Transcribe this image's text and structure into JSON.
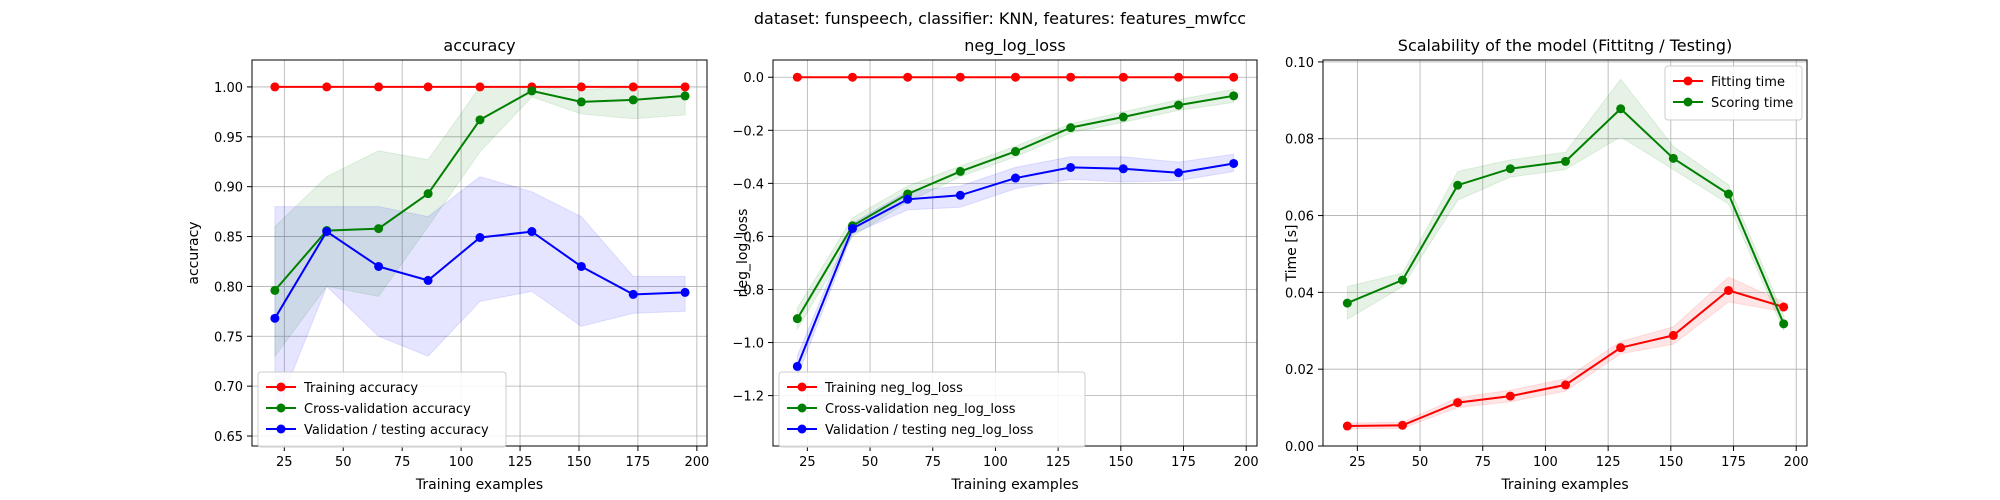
{
  "suptitle": "dataset: funspeech, classifier: KNN, features: features_mwfcc",
  "colors": {
    "training": "#ff0000",
    "cross_validation": "#008000",
    "validation": "#0000ff"
  },
  "chart_data": [
    {
      "type": "line",
      "title": "accuracy",
      "xlabel": "Training examples",
      "ylabel": "accuracy",
      "xlim": [
        11.3,
        204.3
      ],
      "ylim": [
        0.64,
        1.027
      ],
      "xticks": [
        25,
        50,
        75,
        100,
        125,
        150,
        175,
        200
      ],
      "yticks": [
        0.65,
        0.7,
        0.75,
        0.8,
        0.85,
        0.9,
        0.95,
        1.0
      ],
      "ytick_labels": [
        "0.65",
        "0.70",
        "0.75",
        "0.80",
        "0.85",
        "0.90",
        "0.95",
        "1.00"
      ],
      "grid": true,
      "legend_position": "lower-left",
      "x": [
        21,
        43,
        65,
        86,
        108,
        130,
        151,
        173,
        195
      ],
      "series": [
        {
          "name": "Training accuracy",
          "color": "#ff0000",
          "values": [
            1.0,
            1.0,
            1.0,
            1.0,
            1.0,
            1.0,
            1.0,
            1.0,
            1.0
          ],
          "lower": [
            1.0,
            1.0,
            1.0,
            1.0,
            1.0,
            1.0,
            1.0,
            1.0,
            1.0
          ],
          "upper": [
            1.0,
            1.0,
            1.0,
            1.0,
            1.0,
            1.0,
            1.0,
            1.0,
            1.0
          ]
        },
        {
          "name": "Cross-validation accuracy",
          "color": "#008000",
          "values": [
            0.796,
            0.856,
            0.858,
            0.893,
            0.967,
            0.996,
            0.985,
            0.987,
            0.991
          ],
          "lower": [
            0.73,
            0.8,
            0.79,
            0.86,
            0.935,
            0.99,
            0.973,
            0.968,
            0.972
          ],
          "upper": [
            0.86,
            0.91,
            0.936,
            0.927,
            1.0,
            1.0,
            0.997,
            1.0,
            1.0
          ]
        },
        {
          "name": "Validation / testing accuracy",
          "color": "#0000ff",
          "values": [
            0.768,
            0.855,
            0.82,
            0.806,
            0.849,
            0.855,
            0.82,
            0.792,
            0.794
          ],
          "lower": [
            0.67,
            0.8,
            0.75,
            0.73,
            0.785,
            0.795,
            0.76,
            0.773,
            0.775
          ],
          "upper": [
            0.88,
            0.88,
            0.88,
            0.87,
            0.91,
            0.895,
            0.87,
            0.81,
            0.81
          ]
        }
      ]
    },
    {
      "type": "line",
      "title": "neg_log_loss",
      "xlabel": "Training examples",
      "ylabel": "neg_log_loss",
      "xlim": [
        11.3,
        204.3
      ],
      "ylim": [
        -1.39,
        0.065
      ],
      "xticks": [
        25,
        50,
        75,
        100,
        125,
        150,
        175,
        200
      ],
      "yticks": [
        -1.2,
        -1.0,
        -0.8,
        -0.6,
        -0.4,
        -0.2,
        0.0
      ],
      "ytick_labels": [
        "−1.2",
        "−1.0",
        "−0.8",
        "−0.6",
        "−0.4",
        "−0.2",
        "0.0"
      ],
      "grid": true,
      "legend_position": "lower-left",
      "x": [
        21,
        43,
        65,
        86,
        108,
        130,
        151,
        173,
        195
      ],
      "series": [
        {
          "name": "Training neg_log_loss",
          "color": "#ff0000",
          "values": [
            0,
            0,
            0,
            0,
            0,
            0,
            0,
            0,
            0
          ],
          "lower": [
            0,
            0,
            0,
            0,
            0,
            0,
            0,
            0,
            0
          ],
          "upper": [
            0,
            0,
            0,
            0,
            0,
            0,
            0,
            0,
            0
          ]
        },
        {
          "name": "Cross-validation neg_log_loss",
          "color": "#008000",
          "values": [
            -0.91,
            -0.56,
            -0.44,
            -0.355,
            -0.28,
            -0.19,
            -0.15,
            -0.105,
            -0.07
          ],
          "lower": [
            -0.95,
            -0.6,
            -0.47,
            -0.375,
            -0.3,
            -0.21,
            -0.17,
            -0.125,
            -0.095
          ],
          "upper": [
            -0.87,
            -0.53,
            -0.41,
            -0.335,
            -0.26,
            -0.175,
            -0.13,
            -0.085,
            -0.045
          ]
        },
        {
          "name": "Validation / testing neg_log_loss",
          "color": "#0000ff",
          "values": [
            -1.09,
            -0.57,
            -0.46,
            -0.445,
            -0.38,
            -0.34,
            -0.345,
            -0.36,
            -0.325
          ],
          "lower": [
            -1.13,
            -0.59,
            -0.5,
            -0.49,
            -0.42,
            -0.385,
            -0.395,
            -0.39,
            -0.355
          ],
          "upper": [
            -1.05,
            -0.55,
            -0.43,
            -0.41,
            -0.34,
            -0.3,
            -0.3,
            -0.32,
            -0.29
          ]
        }
      ]
    },
    {
      "type": "line",
      "title": "Scalability of the model (Fittitng / Testing)",
      "xlabel": "Training examples",
      "ylabel": "Time [s]",
      "xlim": [
        11.3,
        204.3
      ],
      "ylim": [
        0.0,
        0.1005
      ],
      "xticks": [
        25,
        50,
        75,
        100,
        125,
        150,
        175,
        200
      ],
      "yticks": [
        0.0,
        0.02,
        0.04,
        0.06,
        0.08,
        0.1
      ],
      "ytick_labels": [
        "0.00",
        "0.02",
        "0.04",
        "0.06",
        "0.08",
        "0.10"
      ],
      "grid": true,
      "legend_position": "upper-right",
      "x": [
        21,
        43,
        65,
        86,
        108,
        130,
        151,
        173,
        195
      ],
      "series": [
        {
          "name": "Fitting time",
          "color": "#ff0000",
          "values": [
            0.0052,
            0.0054,
            0.0113,
            0.013,
            0.0159,
            0.0256,
            0.0288,
            0.0405,
            0.0362
          ],
          "lower": [
            0.0045,
            0.0046,
            0.01,
            0.0115,
            0.0143,
            0.024,
            0.0265,
            0.0375,
            0.035
          ],
          "upper": [
            0.006,
            0.0062,
            0.0126,
            0.0145,
            0.0175,
            0.0272,
            0.031,
            0.044,
            0.0375
          ]
        },
        {
          "name": "Scoring time",
          "color": "#008000",
          "values": [
            0.0372,
            0.0432,
            0.0679,
            0.0722,
            0.0741,
            0.0878,
            0.0749,
            0.0656,
            0.0318
          ],
          "lower": [
            0.033,
            0.0415,
            0.064,
            0.07,
            0.072,
            0.0805,
            0.072,
            0.063,
            0.03
          ],
          "upper": [
            0.0415,
            0.045,
            0.0715,
            0.0745,
            0.0765,
            0.0955,
            0.078,
            0.068,
            0.034
          ]
        }
      ]
    }
  ]
}
